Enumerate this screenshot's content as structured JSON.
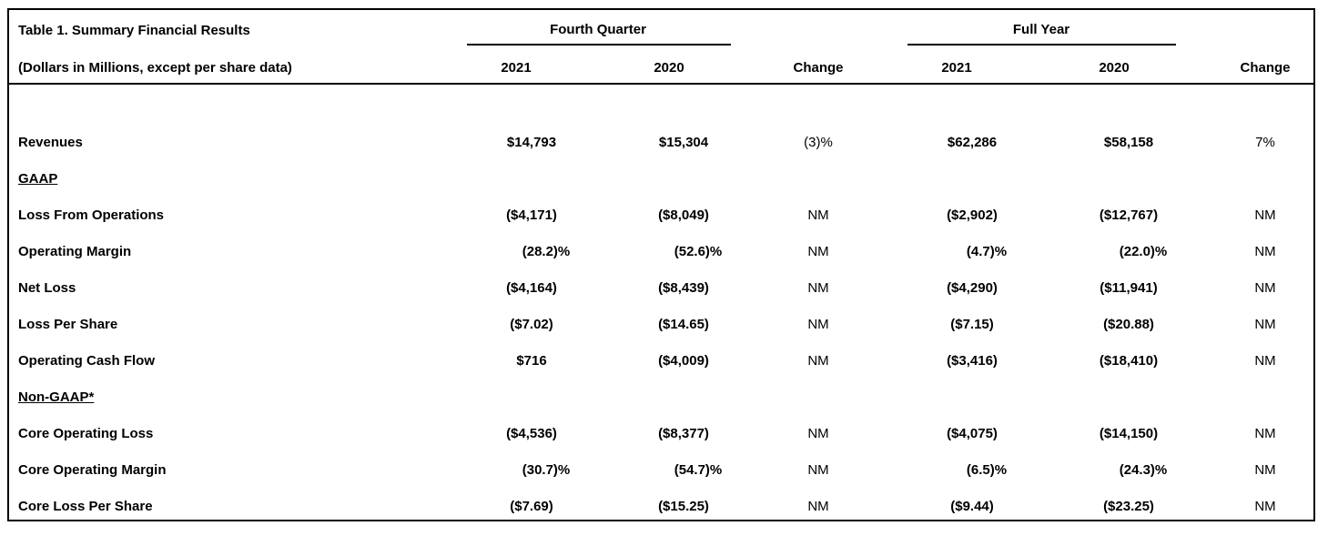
{
  "header": {
    "title": "Table 1. Summary Financial Results",
    "subtitle": "(Dollars in Millions, except per share data)",
    "group_q": "Fourth Quarter",
    "group_fy": "Full Year",
    "columns": [
      "2021",
      "2020",
      "Change",
      "2021",
      "2020",
      "Change"
    ]
  },
  "rows": [
    {
      "label": "Revenues",
      "values": [
        "$14,793",
        "$15,304",
        "(3)%",
        "$62,286",
        "$58,158",
        "7%"
      ]
    },
    {
      "label": "GAAP",
      "section": true
    },
    {
      "label": "Loss From Operations",
      "values": [
        "($4,171)",
        "($8,049)",
        "NM",
        "($2,902)",
        "($12,767)",
        "NM"
      ]
    },
    {
      "label": "Operating Margin",
      "values": [
        "(28.2)%",
        "(52.6)%",
        "NM",
        "(4.7)%",
        "(22.0)%",
        "NM"
      ]
    },
    {
      "label": "Net Loss",
      "values": [
        "($4,164)",
        "($8,439)",
        "NM",
        "($4,290)",
        "($11,941)",
        "NM"
      ]
    },
    {
      "label": "Loss Per Share",
      "values": [
        "($7.02)",
        "($14.65)",
        "NM",
        "($7.15)",
        "($20.88)",
        "NM"
      ]
    },
    {
      "label": "Operating Cash Flow",
      "values": [
        "$716",
        "($4,009)",
        "NM",
        "($3,416)",
        "($18,410)",
        "NM"
      ]
    },
    {
      "label": "Non-GAAP*",
      "section": true
    },
    {
      "label": "Core Operating Loss",
      "values": [
        "($4,536)",
        "($8,377)",
        "NM",
        "($4,075)",
        "($14,150)",
        "NM"
      ]
    },
    {
      "label": "Core Operating Margin",
      "values": [
        "(30.7)%",
        "(54.7)%",
        "NM",
        "(6.5)%",
        "(24.3)%",
        "NM"
      ]
    },
    {
      "label": "Core Loss Per Share",
      "values": [
        "($7.69)",
        "($15.25)",
        "NM",
        "($9.44)",
        "($23.25)",
        "NM"
      ]
    }
  ]
}
